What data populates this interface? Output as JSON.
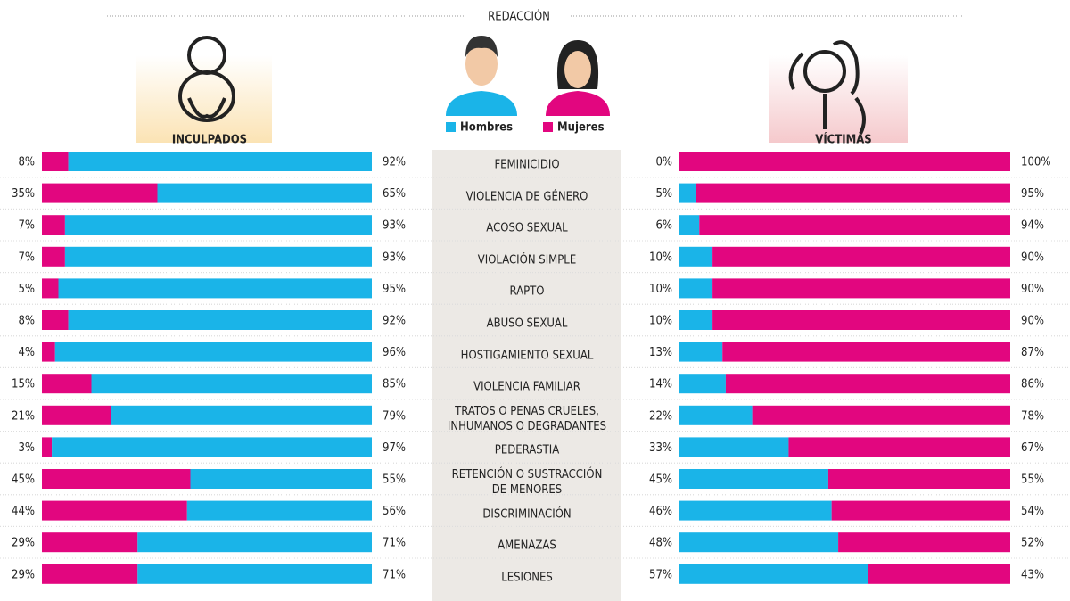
{
  "chart_data": {
    "type": "bar",
    "stacked": true,
    "orientation": "horizontal",
    "header": "REDACCIÓN",
    "series": [
      {
        "name": "Hombres",
        "color": "#1ab4e8"
      },
      {
        "name": "Mujeres",
        "color": "#e2067f"
      }
    ],
    "categories": [
      "FEMINICIDIO",
      "VIOLENCIA DE GÉNERO",
      "ACOSO SEXUAL",
      "VIOLACIÓN SIMPLE",
      "RAPTO",
      "ABUSO SEXUAL",
      "HOSTIGAMIENTO SEXUAL",
      "VIOLENCIA FAMILIAR",
      "TRATOS O PENAS CRUELES,\nINHUMANOS O DEGRADANTES",
      "PEDERASTIA",
      "RETENCIÓN O SUSTRACCIÓN\nDE MENORES",
      "DISCRIMINACIÓN",
      "AMENAZAS",
      "LESIONES"
    ],
    "panels": [
      {
        "title": "INCULPADOS",
        "order": [
          1,
          0
        ],
        "series_values": [
          [
            92,
            65,
            93,
            93,
            95,
            92,
            96,
            85,
            79,
            97,
            55,
            56,
            71,
            71
          ],
          [
            8,
            35,
            7,
            7,
            5,
            8,
            4,
            15,
            21,
            3,
            45,
            44,
            29,
            29
          ]
        ],
        "value_labels": [
          [
            "92%",
            "65%",
            "93%",
            "93%",
            "95%",
            "92%",
            "96%",
            "85%",
            "79%",
            "97%",
            "55%",
            "56%",
            "71%",
            "71%"
          ],
          [
            "8%",
            "35%",
            "7%",
            "7%",
            "5%",
            "8%",
            "4%",
            "15%",
            "21%",
            "3%",
            "45%",
            "44%",
            "29%",
            "29%"
          ]
        ]
      },
      {
        "title": "VÍCTIMAS",
        "order": [
          0,
          1
        ],
        "series_values": [
          [
            0,
            5,
            6,
            10,
            10,
            10,
            13,
            14,
            22,
            33,
            45,
            46,
            48,
            57
          ],
          [
            100,
            95,
            94,
            90,
            90,
            90,
            87,
            86,
            78,
            67,
            55,
            54,
            52,
            43
          ]
        ],
        "value_labels": [
          [
            "0%",
            "5%",
            "6%",
            "10%",
            "10%",
            "10%",
            "13%",
            "14%",
            "22%",
            "33%",
            "45%",
            "46%",
            "48%",
            "57%"
          ],
          [
            "100%",
            "95%",
            "94%",
            "90%",
            "90%",
            "90%",
            "87%",
            "86%",
            "78%",
            "67%",
            "55%",
            "54%",
            "52%",
            "43%"
          ]
        ]
      }
    ],
    "xlim": [
      0,
      100
    ]
  }
}
